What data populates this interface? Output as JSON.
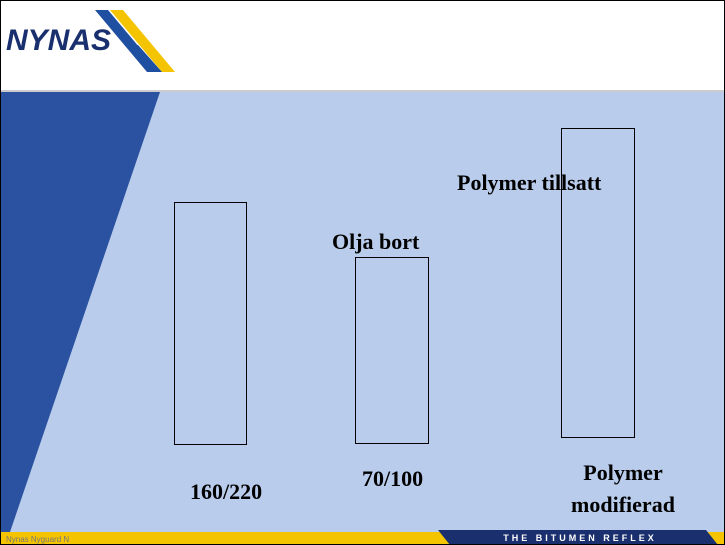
{
  "header": {
    "logo": "NYNAS"
  },
  "labels": {
    "bar_top_3": "Polymer tillsatt",
    "bar_top_2": "Olja bort",
    "cat_1": "160/220",
    "cat_2": "70/100",
    "cat_3_line1": "Polymer",
    "cat_3_line2": "modifierad"
  },
  "footer": {
    "author": "Nynas Nyguard N",
    "tagline": "THE BITUMEN REFLEX"
  }
}
